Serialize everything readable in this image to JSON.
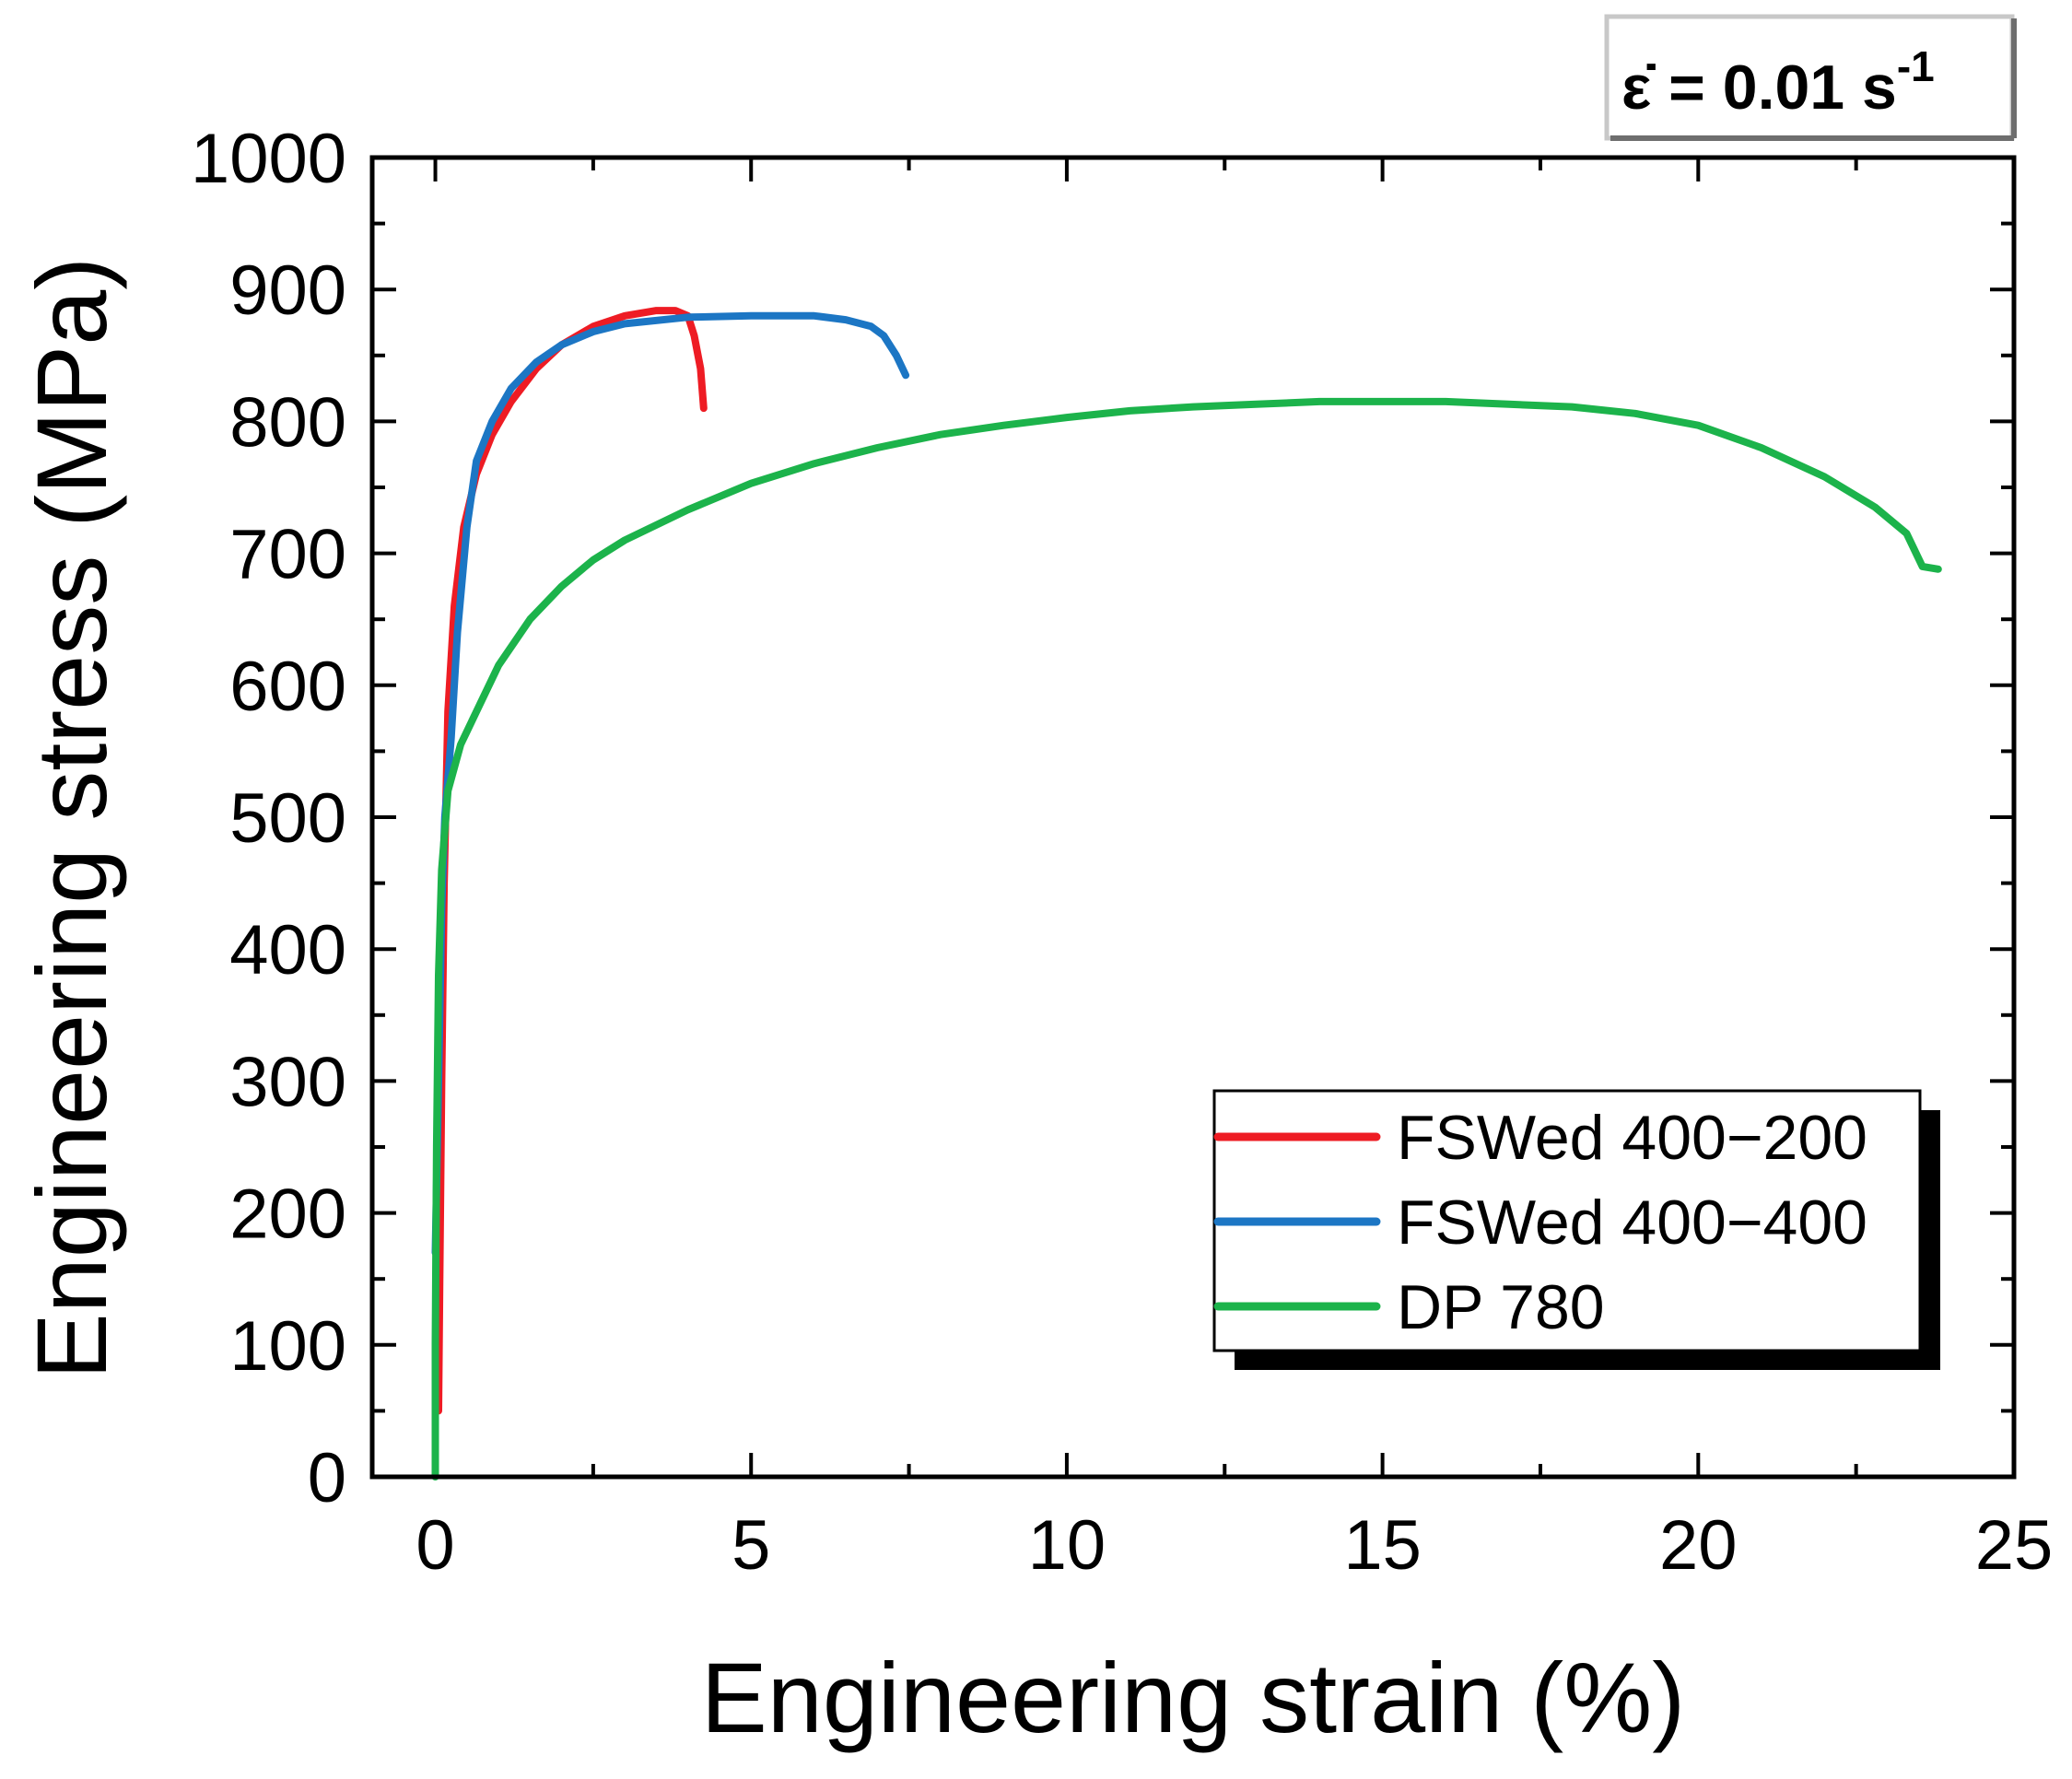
{
  "chart_data": {
    "type": "line",
    "title": "",
    "xlabel": "Engineering strain (%)",
    "ylabel": "Engineering stress (MPa)",
    "xlim": [
      -1,
      25
    ],
    "ylim": [
      0,
      1000
    ],
    "xticks": [
      0,
      5,
      10,
      15,
      20,
      25
    ],
    "yticks": [
      0,
      100,
      200,
      300,
      400,
      500,
      600,
      700,
      800,
      900,
      1000
    ],
    "annotation": {
      "prefix": "ε̇ = 0.01 s",
      "superscript": "-1"
    },
    "legend": {
      "position": "bottom-right"
    },
    "series": [
      {
        "name": "FSWed 400−200",
        "color": "#ee1c24",
        "points": [
          [
            0.05,
            50
          ],
          [
            0.07,
            150
          ],
          [
            0.1,
            300
          ],
          [
            0.14,
            450
          ],
          [
            0.2,
            580
          ],
          [
            0.3,
            660
          ],
          [
            0.45,
            720
          ],
          [
            0.65,
            760
          ],
          [
            0.9,
            790
          ],
          [
            1.2,
            815
          ],
          [
            1.6,
            840
          ],
          [
            2.0,
            858
          ],
          [
            2.5,
            872
          ],
          [
            3.0,
            880
          ],
          [
            3.5,
            884
          ],
          [
            3.8,
            884
          ],
          [
            4.0,
            880
          ],
          [
            4.1,
            865
          ],
          [
            4.2,
            840
          ],
          [
            4.25,
            810
          ]
        ]
      },
      {
        "name": "FSWed 400−400",
        "color": "#1c76c4",
        "points": [
          [
            0.0,
            170
          ],
          [
            0.05,
            300
          ],
          [
            0.1,
            430
          ],
          [
            0.15,
            500
          ],
          [
            0.25,
            560
          ],
          [
            0.35,
            640
          ],
          [
            0.5,
            720
          ],
          [
            0.65,
            770
          ],
          [
            0.9,
            800
          ],
          [
            1.2,
            825
          ],
          [
            1.6,
            845
          ],
          [
            2.0,
            858
          ],
          [
            2.5,
            868
          ],
          [
            3.0,
            874
          ],
          [
            4.0,
            879
          ],
          [
            5.0,
            880
          ],
          [
            6.0,
            880
          ],
          [
            6.5,
            877
          ],
          [
            6.9,
            872
          ],
          [
            7.1,
            865
          ],
          [
            7.3,
            850
          ],
          [
            7.45,
            835
          ]
        ]
      },
      {
        "name": "DP 780",
        "color": "#1cb34b",
        "points": [
          [
            0.0,
            0
          ],
          [
            0.0,
            100
          ],
          [
            0.02,
            250
          ],
          [
            0.05,
            380
          ],
          [
            0.1,
            460
          ],
          [
            0.2,
            520
          ],
          [
            0.4,
            555
          ],
          [
            0.7,
            585
          ],
          [
            1.0,
            615
          ],
          [
            1.5,
            650
          ],
          [
            2.0,
            675
          ],
          [
            2.5,
            695
          ],
          [
            3.0,
            710
          ],
          [
            4.0,
            733
          ],
          [
            5.0,
            753
          ],
          [
            6.0,
            768
          ],
          [
            7.0,
            780
          ],
          [
            8.0,
            790
          ],
          [
            9.0,
            797
          ],
          [
            10.0,
            803
          ],
          [
            11.0,
            808
          ],
          [
            12.0,
            811
          ],
          [
            13.0,
            813
          ],
          [
            14.0,
            815
          ],
          [
            15.0,
            815
          ],
          [
            16.0,
            815
          ],
          [
            17.0,
            813
          ],
          [
            18.0,
            811
          ],
          [
            19.0,
            806
          ],
          [
            20.0,
            797
          ],
          [
            21.0,
            780
          ],
          [
            22.0,
            758
          ],
          [
            22.8,
            735
          ],
          [
            23.3,
            715
          ],
          [
            23.55,
            690
          ],
          [
            23.8,
            688
          ]
        ]
      }
    ]
  }
}
